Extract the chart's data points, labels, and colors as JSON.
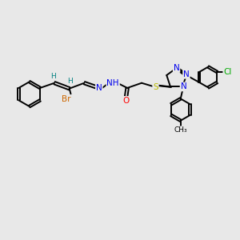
{
  "bg_color": "#e8e8e8",
  "bond_color": "#000000",
  "atom_colors": {
    "N": "#0000ee",
    "O": "#ff0000",
    "S": "#bbbb00",
    "Br": "#cc6600",
    "Cl": "#00aa00",
    "H_label": "#008080",
    "C": "#000000"
  },
  "figsize": [
    3.0,
    3.0
  ],
  "dpi": 100,
  "xlim": [
    0,
    12
  ],
  "ylim": [
    0,
    10
  ]
}
